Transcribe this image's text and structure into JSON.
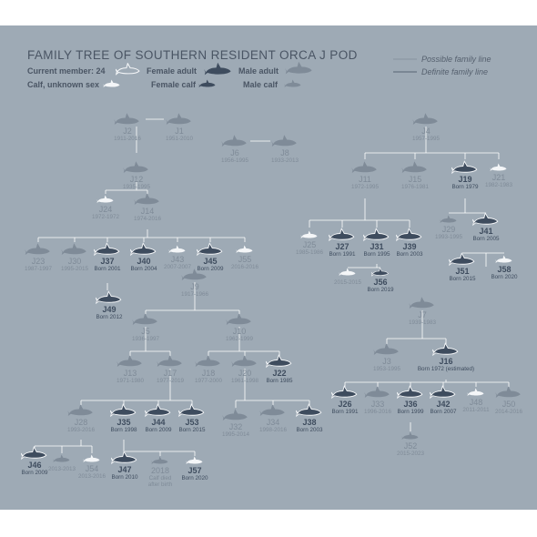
{
  "title": "FAMILY TREE OF SOUTHERN RESIDENT ORCA J POD",
  "legend": {
    "current_member": "Current member: 24",
    "female_adult": "Female adult",
    "male_adult": "Male adult",
    "calf_unknown": "Calf, unknown sex",
    "female_calf": "Female calf",
    "male_calf": "Male calf",
    "possible_line": "Possible family line",
    "definite_line": "Definite family line"
  },
  "colors": {
    "background": "#9eaab5",
    "current": "#3e4c5e",
    "deceased": "#7f8b98",
    "calf_white": "#f4f6f8"
  },
  "whales": [
    {
      "id": "J2",
      "dates": "1911-2016"
    },
    {
      "id": "J1",
      "dates": "1951-2010"
    },
    {
      "id": "J6",
      "dates": "1956-1995"
    },
    {
      "id": "J8",
      "dates": "1933-2013"
    },
    {
      "id": "J12",
      "dates": "1935-1995"
    },
    {
      "id": "J24",
      "dates": "1972-1972"
    },
    {
      "id": "J14",
      "dates": "1974-2016"
    },
    {
      "id": "J23",
      "dates": "1987-1997"
    },
    {
      "id": "J30",
      "dates": "1995-2015"
    },
    {
      "id": "J37",
      "dates": "Born 2001"
    },
    {
      "id": "J40",
      "dates": "Born 2004"
    },
    {
      "id": "J43",
      "dates": "2007-2007"
    },
    {
      "id": "J45",
      "dates": "Born 2009"
    },
    {
      "id": "J55",
      "dates": "2016-2016"
    },
    {
      "id": "J49",
      "dates": "Born 2012"
    },
    {
      "id": "J4",
      "dates": "1957-1995"
    },
    {
      "id": "J11",
      "dates": "1972-1995"
    },
    {
      "id": "J15",
      "dates": "1976-1981"
    },
    {
      "id": "J19",
      "dates": "Born 1979"
    },
    {
      "id": "J21",
      "dates": "1982-1983"
    },
    {
      "id": "J25",
      "dates": "1985-1986"
    },
    {
      "id": "J27",
      "dates": "Born 1991"
    },
    {
      "id": "J31",
      "dates": "Born 1995"
    },
    {
      "id": "J39",
      "dates": "Born 2003"
    },
    {
      "id": "J29",
      "dates": "1993-1995"
    },
    {
      "id": "J41",
      "dates": "Born 2005"
    },
    {
      "id": "",
      "dates": "2015-2015"
    },
    {
      "id": "J56",
      "dates": "Born 2019"
    },
    {
      "id": "J51",
      "dates": "Born 2015"
    },
    {
      "id": "J58",
      "dates": "Born 2020"
    },
    {
      "id": "J9",
      "dates": "1917-1966"
    },
    {
      "id": "J5",
      "dates": "1936-1997"
    },
    {
      "id": "J10",
      "dates": "1962-1999"
    },
    {
      "id": "J13",
      "dates": "1971-1980"
    },
    {
      "id": "J17",
      "dates": "1977-2019"
    },
    {
      "id": "J18",
      "dates": "1977-2000"
    },
    {
      "id": "J20",
      "dates": "1961-1998"
    },
    {
      "id": "J22",
      "dates": "Born 1985"
    },
    {
      "id": "J28",
      "dates": "1993-2016"
    },
    {
      "id": "J35",
      "dates": "Born 1998"
    },
    {
      "id": "J44",
      "dates": "Born 2009"
    },
    {
      "id": "J53",
      "dates": "Born 2015"
    },
    {
      "id": "J32",
      "dates": "1995-2014"
    },
    {
      "id": "J34",
      "dates": "1998-2016"
    },
    {
      "id": "J38",
      "dates": "Born 2003"
    },
    {
      "id": "J46",
      "dates": "Born 2009"
    },
    {
      "id": "",
      "dates": "2013-2013"
    },
    {
      "id": "J54",
      "dates": "2013-2016"
    },
    {
      "id": "J47",
      "dates": "Born 2010"
    },
    {
      "id": "2018",
      "dates": "Calf died after birth"
    },
    {
      "id": "J57",
      "dates": "Born 2020"
    },
    {
      "id": "J7",
      "dates": "1939-1983"
    },
    {
      "id": "J3",
      "dates": "1953-1995"
    },
    {
      "id": "J16",
      "dates": "Born 1972 (estimated)"
    },
    {
      "id": "J26",
      "dates": "Born 1991"
    },
    {
      "id": "J33",
      "dates": "1996-2016"
    },
    {
      "id": "J36",
      "dates": "Born 1999"
    },
    {
      "id": "J42",
      "dates": "Born 2007"
    },
    {
      "id": "J48",
      "dates": "2011-2011"
    },
    {
      "id": "J50",
      "dates": "2014-2016"
    },
    {
      "id": "J52",
      "dates": "2015-2023"
    }
  ]
}
